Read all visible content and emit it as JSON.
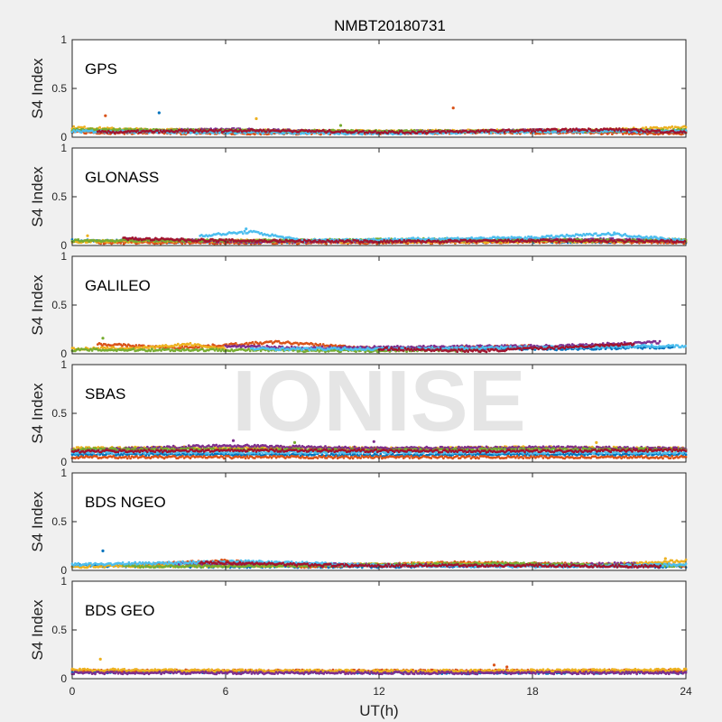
{
  "figure": {
    "title": "NMBT20180731",
    "watermark": "IONISE",
    "xlabel": "UT(h)",
    "xticks": [
      0,
      6,
      12,
      18,
      24
    ],
    "xlim": [
      0,
      24
    ],
    "background_color": "#f0f0f0",
    "axes_color": "#ffffff"
  },
  "series_colors": [
    "#0072bd",
    "#d95319",
    "#edb120",
    "#7e2f8e",
    "#77ac30",
    "#4dbeee",
    "#a2142f"
  ],
  "chart_data": [
    {
      "type": "scatter",
      "label": "GPS",
      "ylabel": "S4 Index",
      "ylim": [
        0,
        1
      ],
      "yticks": [
        0,
        0.5,
        1
      ],
      "grid": false,
      "series": [
        {
          "segments": [
            [
              0,
              0.07
            ],
            [
              3.5,
              0.06
            ],
            [
              8,
              0.05
            ],
            [
              14,
              0.05
            ],
            [
              18,
              0.06
            ],
            [
              24,
              0.05
            ]
          ]
        },
        {
          "segments": [
            [
              0,
              0.05
            ],
            [
              5,
              0.04
            ],
            [
              10,
              0.04
            ],
            [
              16,
              0.05
            ],
            [
              24,
              0.04
            ]
          ]
        },
        {
          "segments": [
            [
              0,
              0.1
            ],
            [
              2,
              0.08
            ],
            [
              6,
              0.07
            ],
            [
              12,
              0.06
            ],
            [
              20,
              0.07
            ],
            [
              24,
              0.1
            ]
          ]
        },
        {
          "segments": [
            [
              2,
              0.06
            ],
            [
              6,
              0.08
            ],
            [
              11,
              0.05
            ],
            [
              18,
              0.07
            ],
            [
              23,
              0.06
            ]
          ]
        },
        {
          "segments": [
            [
              0,
              0.08
            ],
            [
              4,
              0.07
            ],
            [
              9,
              0.06
            ],
            [
              15,
              0.06
            ],
            [
              24,
              0.07
            ]
          ]
        },
        {
          "segments": [
            [
              0,
              0.06
            ],
            [
              6,
              0.05
            ],
            [
              12,
              0.04
            ],
            [
              19,
              0.06
            ],
            [
              24,
              0.06
            ]
          ]
        },
        {
          "segments": [
            [
              1,
              0.05
            ],
            [
              7,
              0.07
            ],
            [
              13,
              0.05
            ],
            [
              21,
              0.08
            ],
            [
              24,
              0.05
            ]
          ]
        }
      ],
      "outliers": [
        [
          1.3,
          0.22,
          1
        ],
        [
          3.4,
          0.25,
          0
        ],
        [
          7.2,
          0.19,
          2
        ],
        [
          14.9,
          0.3,
          1
        ],
        [
          10.5,
          0.12,
          4
        ]
      ]
    },
    {
      "type": "scatter",
      "label": "GLONASS",
      "ylabel": "S4 Index",
      "ylim": [
        0,
        1
      ],
      "yticks": [
        0,
        0.5,
        1
      ],
      "grid": false,
      "series": [
        {
          "segments": [
            [
              0,
              0.05
            ],
            [
              4,
              0.04
            ],
            [
              10,
              0.04
            ],
            [
              16,
              0.04
            ],
            [
              24,
              0.04
            ]
          ]
        },
        {
          "segments": [
            [
              1,
              0.03
            ],
            [
              6,
              0.03
            ],
            [
              12,
              0.03
            ],
            [
              20,
              0.04
            ],
            [
              24,
              0.03
            ]
          ]
        },
        {
          "segments": [
            [
              0,
              0.04
            ],
            [
              5,
              0.05
            ],
            [
              11,
              0.04
            ],
            [
              17,
              0.04
            ],
            [
              24,
              0.05
            ]
          ]
        },
        {
          "segments": [
            [
              2,
              0.06
            ],
            [
              7,
              0.04
            ],
            [
              13,
              0.05
            ],
            [
              21,
              0.06
            ],
            [
              24,
              0.05
            ]
          ]
        },
        {
          "segments": [
            [
              0,
              0.05
            ],
            [
              8,
              0.05
            ],
            [
              14,
              0.06
            ],
            [
              22,
              0.05
            ],
            [
              24,
              0.06
            ]
          ]
        },
        {
          "segments": [
            [
              5,
              0.1
            ],
            [
              7,
              0.14
            ],
            [
              9,
              0.05
            ],
            [
              18,
              0.08
            ],
            [
              21,
              0.12
            ],
            [
              24,
              0.05
            ]
          ]
        },
        {
          "segments": [
            [
              2,
              0.07
            ],
            [
              6,
              0.05
            ],
            [
              12,
              0.04
            ],
            [
              19,
              0.05
            ],
            [
              24,
              0.04
            ]
          ]
        }
      ],
      "outliers": [
        [
          0.6,
          0.1,
          2
        ],
        [
          6.8,
          0.17,
          5
        ],
        [
          21.2,
          0.13,
          5
        ]
      ]
    },
    {
      "type": "scatter",
      "label": "GALILEO",
      "ylabel": "S4 Index",
      "ylim": [
        0,
        1
      ],
      "yticks": [
        0,
        0.5,
        1
      ],
      "grid": false,
      "series": [
        {
          "segments": [
            [
              10,
              0.05
            ],
            [
              15,
              0.06
            ],
            [
              19,
              0.05
            ],
            [
              23.5,
              0.07
            ]
          ]
        },
        {
          "segments": [
            [
              1,
              0.1
            ],
            [
              4,
              0.06
            ],
            [
              8,
              0.12
            ],
            [
              12,
              0.05
            ],
            [
              18,
              0.08
            ]
          ]
        },
        {
          "segments": [
            [
              0,
              0.05
            ],
            [
              3,
              0.06
            ],
            [
              4.5,
              0.1
            ],
            [
              6,
              0.05
            ]
          ]
        },
        {
          "segments": [
            [
              6,
              0.08
            ],
            [
              9,
              0.06
            ],
            [
              19,
              0.08
            ],
            [
              23,
              0.12
            ]
          ]
        },
        {
          "segments": [
            [
              0,
              0.04
            ],
            [
              6,
              0.04
            ],
            [
              11,
              0.03
            ],
            [
              16,
              0.04
            ]
          ]
        },
        {
          "segments": [
            [
              7,
              0.05
            ],
            [
              12,
              0.05
            ],
            [
              23.5,
              0.08
            ],
            [
              24,
              0.07
            ]
          ]
        },
        {
          "segments": [
            [
              12,
              0.05
            ],
            [
              16,
              0.03
            ],
            [
              22,
              0.1
            ]
          ]
        }
      ],
      "outliers": [
        [
          1.2,
          0.16,
          4
        ],
        [
          4.5,
          0.1,
          2
        ]
      ]
    },
    {
      "type": "scatter",
      "label": "SBAS",
      "ylabel": "S4 Index",
      "ylim": [
        0,
        1
      ],
      "yticks": [
        0,
        0.5,
        1
      ],
      "grid": false,
      "series": [
        {
          "segments": [
            [
              0,
              0.08
            ],
            [
              6,
              0.08
            ],
            [
              12,
              0.07
            ],
            [
              18,
              0.08
            ],
            [
              24,
              0.08
            ]
          ]
        },
        {
          "segments": [
            [
              0,
              0.05
            ],
            [
              6,
              0.05
            ],
            [
              12,
              0.05
            ],
            [
              18,
              0.05
            ],
            [
              24,
              0.05
            ]
          ]
        },
        {
          "segments": [
            [
              0,
              0.14
            ],
            [
              6,
              0.15
            ],
            [
              12,
              0.14
            ],
            [
              18,
              0.15
            ],
            [
              24,
              0.14
            ]
          ]
        },
        {
          "segments": [
            [
              0,
              0.12
            ],
            [
              6,
              0.17
            ],
            [
              12,
              0.14
            ],
            [
              18,
              0.15
            ],
            [
              24,
              0.14
            ]
          ]
        },
        {
          "segments": [
            [
              0,
              0.13
            ],
            [
              6,
              0.13
            ],
            [
              12,
              0.12
            ],
            [
              18,
              0.13
            ],
            [
              24,
              0.13
            ]
          ]
        },
        {
          "segments": [
            [
              0,
              0.1
            ],
            [
              6,
              0.1
            ],
            [
              12,
              0.1
            ],
            [
              18,
              0.1
            ],
            [
              24,
              0.1
            ]
          ]
        },
        {
          "segments": [
            [
              0,
              0.11
            ],
            [
              8,
              0.12
            ],
            [
              16,
              0.11
            ],
            [
              24,
              0.12
            ]
          ]
        }
      ],
      "outliers": [
        [
          6.3,
          0.22,
          3
        ],
        [
          8.7,
          0.2,
          4
        ],
        [
          11.8,
          0.21,
          3
        ],
        [
          20.5,
          0.2,
          2
        ]
      ]
    },
    {
      "type": "scatter",
      "label": "BDS NGEO",
      "ylabel": "S4 Index",
      "ylim": [
        0,
        1
      ],
      "yticks": [
        0,
        0.5,
        1
      ],
      "grid": false,
      "series": [
        {
          "segments": [
            [
              0,
              0.05
            ],
            [
              6,
              0.04
            ],
            [
              12,
              0.04
            ],
            [
              18,
              0.05
            ],
            [
              24,
              0.04
            ]
          ]
        },
        {
          "segments": [
            [
              2,
              0.05
            ],
            [
              6,
              0.1
            ],
            [
              9,
              0.04
            ],
            [
              15,
              0.08
            ],
            [
              21,
              0.06
            ],
            [
              24,
              0.05
            ]
          ]
        },
        {
          "segments": [
            [
              0,
              0.04
            ],
            [
              8,
              0.05
            ],
            [
              14,
              0.07
            ],
            [
              20,
              0.05
            ],
            [
              24,
              0.1
            ]
          ]
        },
        {
          "segments": [
            [
              4,
              0.07
            ],
            [
              10,
              0.06
            ],
            [
              16,
              0.05
            ],
            [
              22,
              0.07
            ]
          ]
        },
        {
          "segments": [
            [
              2,
              0.04
            ],
            [
              9,
              0.05
            ],
            [
              17,
              0.07
            ],
            [
              21,
              0.05
            ],
            [
              24,
              0.05
            ]
          ]
        },
        {
          "segments": [
            [
              0,
              0.06
            ],
            [
              7,
              0.09
            ],
            [
              12,
              0.05
            ],
            [
              19,
              0.04
            ],
            [
              24,
              0.06
            ]
          ]
        },
        {
          "segments": [
            [
              5,
              0.08
            ],
            [
              11,
              0.05
            ],
            [
              18,
              0.05
            ],
            [
              23,
              0.04
            ]
          ]
        }
      ],
      "outliers": [
        [
          1.2,
          0.2,
          0
        ],
        [
          23.2,
          0.12,
          2
        ]
      ]
    },
    {
      "type": "scatter",
      "label": "BDS GEO",
      "ylabel": "S4 Index",
      "ylim": [
        0,
        1
      ],
      "yticks": [
        0,
        0.5,
        1
      ],
      "grid": false,
      "series": [
        {
          "segments": [
            [
              0,
              0.07
            ],
            [
              8,
              0.07
            ],
            [
              16,
              0.06
            ],
            [
              24,
              0.07
            ]
          ]
        },
        {
          "segments": [
            [
              0,
              0.08
            ],
            [
              8,
              0.08
            ],
            [
              16,
              0.08
            ],
            [
              24,
              0.08
            ]
          ]
        },
        {
          "segments": [
            [
              0,
              0.09
            ],
            [
              8,
              0.08
            ],
            [
              16,
              0.08
            ],
            [
              24,
              0.09
            ]
          ]
        },
        {
          "segments": [
            [
              0,
              0.06
            ],
            [
              12,
              0.06
            ],
            [
              24,
              0.06
            ]
          ]
        }
      ],
      "outliers": [
        [
          1.1,
          0.2,
          2
        ],
        [
          1.6,
          0.1,
          2
        ],
        [
          16.5,
          0.14,
          1
        ],
        [
          17,
          0.12,
          1
        ]
      ]
    }
  ]
}
